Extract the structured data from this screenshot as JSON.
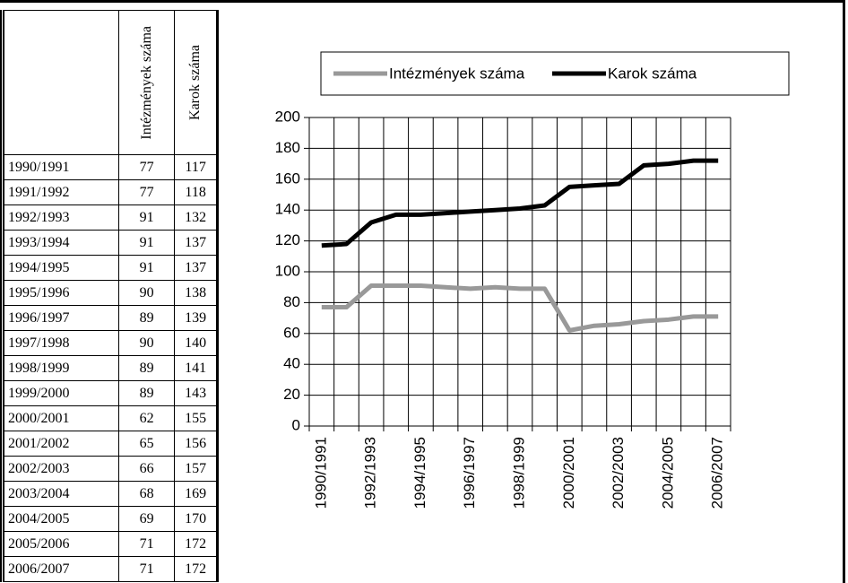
{
  "table": {
    "header": [
      "Intézmények száma",
      "Karok száma"
    ],
    "rows": [
      [
        "1990/1991",
        77,
        117
      ],
      [
        "1991/1992",
        77,
        118
      ],
      [
        "1992/1993",
        91,
        132
      ],
      [
        "1993/1994",
        91,
        137
      ],
      [
        "1994/1995",
        91,
        137
      ],
      [
        "1995/1996",
        90,
        138
      ],
      [
        "1996/1997",
        89,
        139
      ],
      [
        "1997/1998",
        90,
        140
      ],
      [
        "1998/1999",
        89,
        141
      ],
      [
        "1999/2000",
        89,
        143
      ],
      [
        "2000/2001",
        62,
        155
      ],
      [
        "2001/2002",
        65,
        156
      ],
      [
        "2002/2003",
        66,
        157
      ],
      [
        "2003/2004",
        68,
        169
      ],
      [
        "2004/2005",
        69,
        170
      ],
      [
        "2005/2006",
        71,
        172
      ],
      [
        "2006/2007",
        71,
        172
      ]
    ]
  },
  "chart_data": {
    "type": "line",
    "categories": [
      "1990/1991",
      null,
      "1992/1993",
      null,
      "1994/1995",
      null,
      "1996/1997",
      null,
      "1998/1999",
      null,
      "2000/2001",
      null,
      "2002/2003",
      null,
      "2004/2005",
      null,
      "2006/2007"
    ],
    "series": [
      {
        "name": "Intézmények száma",
        "color": "#999999",
        "values": [
          77,
          77,
          91,
          91,
          91,
          90,
          89,
          90,
          89,
          89,
          62,
          65,
          66,
          68,
          69,
          71,
          71
        ]
      },
      {
        "name": "Karok száma",
        "color": "#000000",
        "values": [
          117,
          118,
          132,
          137,
          137,
          138,
          139,
          140,
          141,
          143,
          155,
          156,
          157,
          169,
          170,
          172,
          172
        ]
      }
    ],
    "ylim": [
      0,
      200
    ],
    "yticks": [
      0,
      20,
      40,
      60,
      80,
      100,
      120,
      140,
      160,
      180,
      200
    ],
    "grid": true,
    "legend": "top"
  }
}
